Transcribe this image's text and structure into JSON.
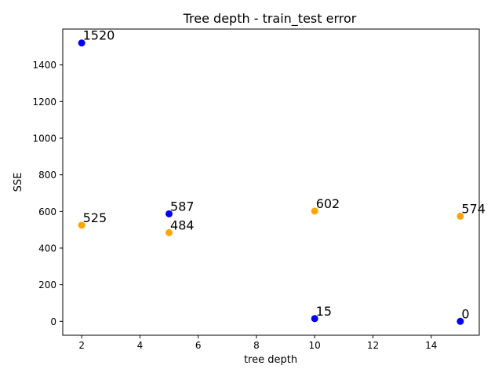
{
  "chart_data": {
    "type": "scatter",
    "title": "Tree depth - train_test error",
    "xlabel": "tree depth",
    "ylabel": "SSE",
    "xlim": [
      1.35,
      15.65
    ],
    "ylim": [
      -76,
      1596
    ],
    "x_ticks": [
      2,
      4,
      6,
      8,
      10,
      12,
      14
    ],
    "y_ticks": [
      0,
      200,
      400,
      600,
      800,
      1000,
      1200,
      1400
    ],
    "grid": false,
    "legend": "none",
    "series": [
      {
        "color": "#0000ff",
        "points": [
          {
            "x": 2,
            "y": 1520,
            "label": "1520"
          },
          {
            "x": 5,
            "y": 587,
            "label": "587"
          },
          {
            "x": 10,
            "y": 15,
            "label": "15"
          },
          {
            "x": 15,
            "y": 0,
            "label": "0"
          }
        ]
      },
      {
        "color": "#ffa500",
        "points": [
          {
            "x": 2,
            "y": 525,
            "label": "525"
          },
          {
            "x": 5,
            "y": 484,
            "label": "484"
          },
          {
            "x": 10,
            "y": 602,
            "label": "602"
          },
          {
            "x": 15,
            "y": 574,
            "label": "574"
          }
        ]
      }
    ]
  }
}
